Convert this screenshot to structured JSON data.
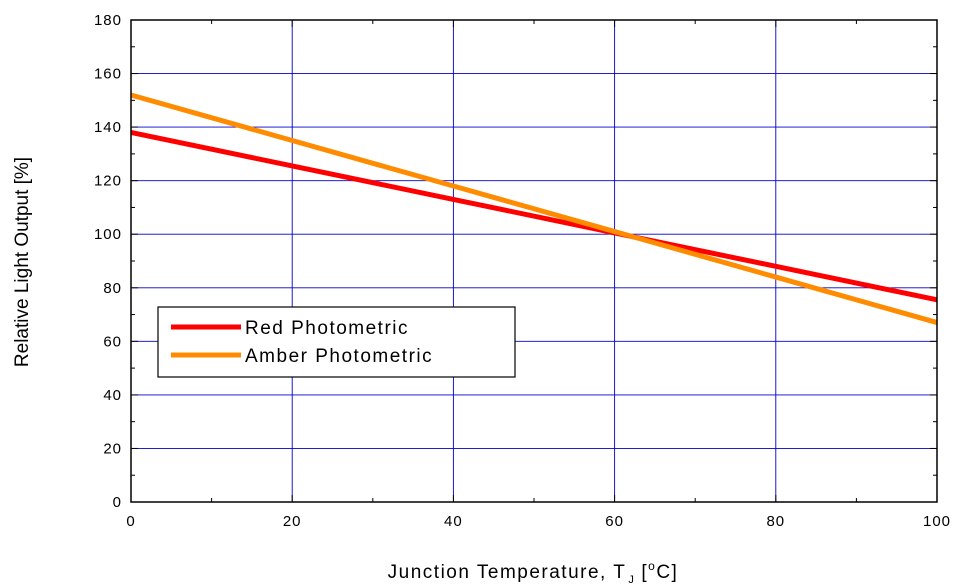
{
  "chart_data": {
    "type": "line",
    "title": "",
    "xlabel": "Junction Temperature, T",
    "xlabel_subscript": "J",
    "xlabel_units_pre": "[",
    "xlabel_units_sup": "o",
    "xlabel_units_post": "C]",
    "ylabel": "Relative Light Output [%]",
    "xlim": [
      0,
      100
    ],
    "ylim": [
      0,
      180
    ],
    "x_ticks": [
      0,
      20,
      40,
      60,
      80,
      100
    ],
    "y_ticks": [
      0,
      20,
      40,
      60,
      80,
      100,
      120,
      140,
      160,
      180
    ],
    "x_tick_labels": [
      "0",
      "20",
      "40",
      "60",
      "80",
      "100"
    ],
    "y_tick_labels": [
      "0",
      "20",
      "40",
      "60",
      "80",
      "100",
      "120",
      "140",
      "160",
      "180"
    ],
    "grid": true,
    "legend_position": "middle-left",
    "series": [
      {
        "name": "Red Photometric",
        "color": "#ff0000",
        "x": [
          0,
          20,
          40,
          60,
          80,
          100
        ],
        "y": [
          138,
          125.5,
          113,
          100.5,
          88,
          75.5
        ]
      },
      {
        "name": "Amber Photometric",
        "color": "#ff8c00",
        "x": [
          0,
          20,
          40,
          60,
          80,
          100
        ],
        "y": [
          152,
          135,
          118,
          101,
          84,
          67
        ]
      }
    ],
    "colors": {
      "grid": "#0000cc",
      "axis": "#000000"
    }
  }
}
